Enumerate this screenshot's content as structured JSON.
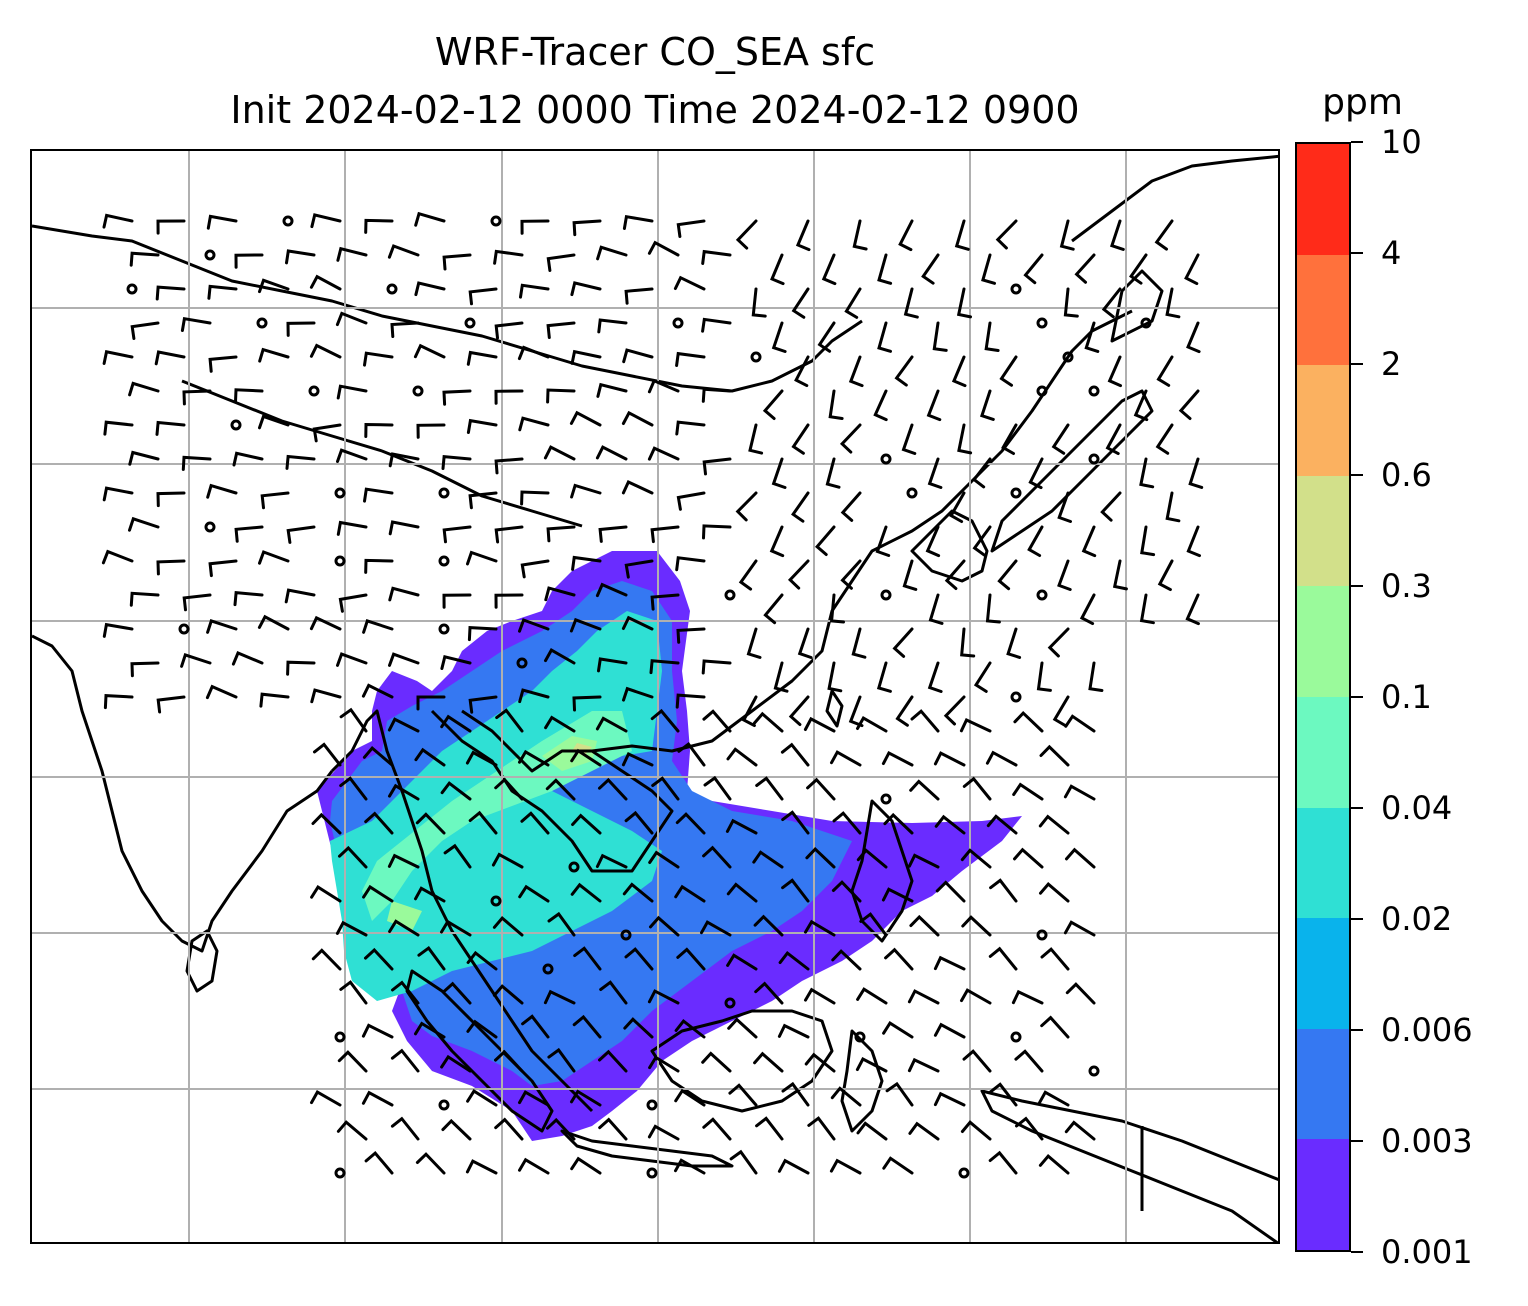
{
  "title": {
    "line1": "WRF-Tracer CO_SEA sfc",
    "line2": "Init 2024-02-12 0000 Time 2024-02-12 0900"
  },
  "colorbar": {
    "unit": "ppm",
    "ticks": [
      "0.001",
      "0.003",
      "0.006",
      "0.02",
      "0.04",
      "0.1",
      "0.3",
      "0.6",
      "2",
      "4",
      "10"
    ],
    "colors": [
      "#6a2cff",
      "#3578f2",
      "#09b3ec",
      "#2fe0d4",
      "#6cf9c0",
      "#9afa9b",
      "#d2e08a",
      "#fbb160",
      "#ff713c",
      "#ff2b19"
    ]
  },
  "map": {
    "field": "CO_SEA tracer concentration (surface)",
    "wind": "barbs",
    "gridlines": true,
    "land_fill": "none",
    "coastline_color": "#000000"
  }
}
